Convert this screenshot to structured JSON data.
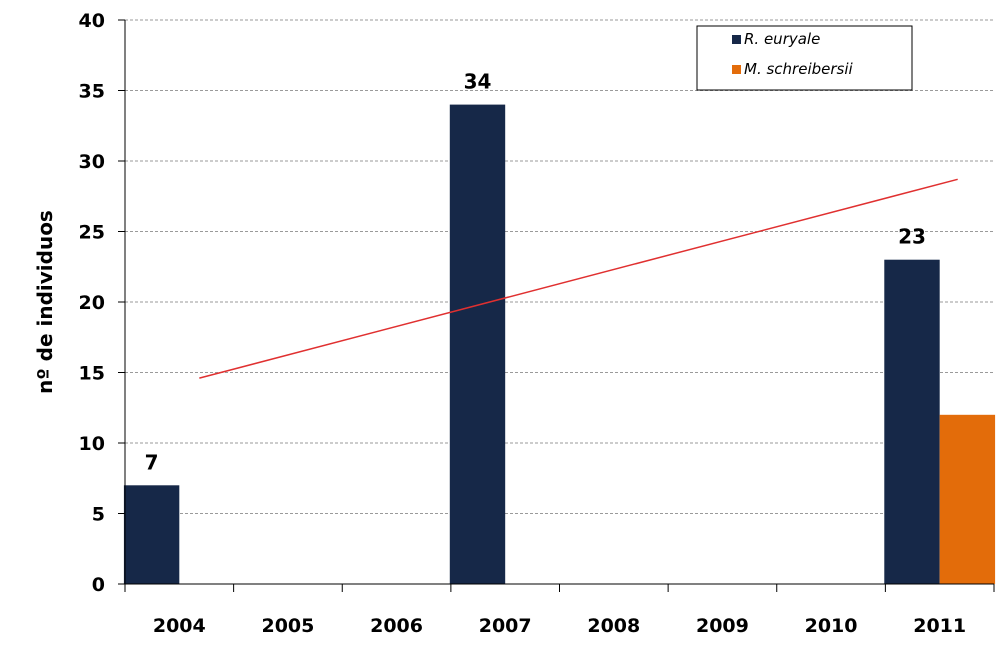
{
  "chart_data": {
    "type": "bar",
    "categories": [
      "2004",
      "2005",
      "2006",
      "2007",
      "2008",
      "2009",
      "2010",
      "2011"
    ],
    "series": [
      {
        "name": "R. euryale",
        "color": "#162848",
        "values": [
          7,
          null,
          null,
          34,
          null,
          null,
          null,
          23
        ]
      },
      {
        "name": "M. schreibersii",
        "color": "#E36C0A",
        "values": [
          null,
          null,
          null,
          null,
          null,
          null,
          null,
          12
        ]
      }
    ],
    "data_labels": [
      "7",
      "",
      "",
      "34",
      "",
      "",
      "",
      "23"
    ],
    "trendline": {
      "series": "R. euryale",
      "type": "linear",
      "color": "#E03030",
      "start": {
        "x": "2004",
        "y": 14.6
      },
      "end": {
        "x": "2011",
        "y": 28.7
      }
    },
    "title": "",
    "xlabel": "",
    "ylabel": "nº de individuos",
    "ylim": [
      0,
      40
    ],
    "yticks": [
      0,
      5,
      10,
      15,
      20,
      25,
      30,
      35,
      40
    ],
    "grid": true,
    "legend": {
      "position": "top-right"
    }
  }
}
